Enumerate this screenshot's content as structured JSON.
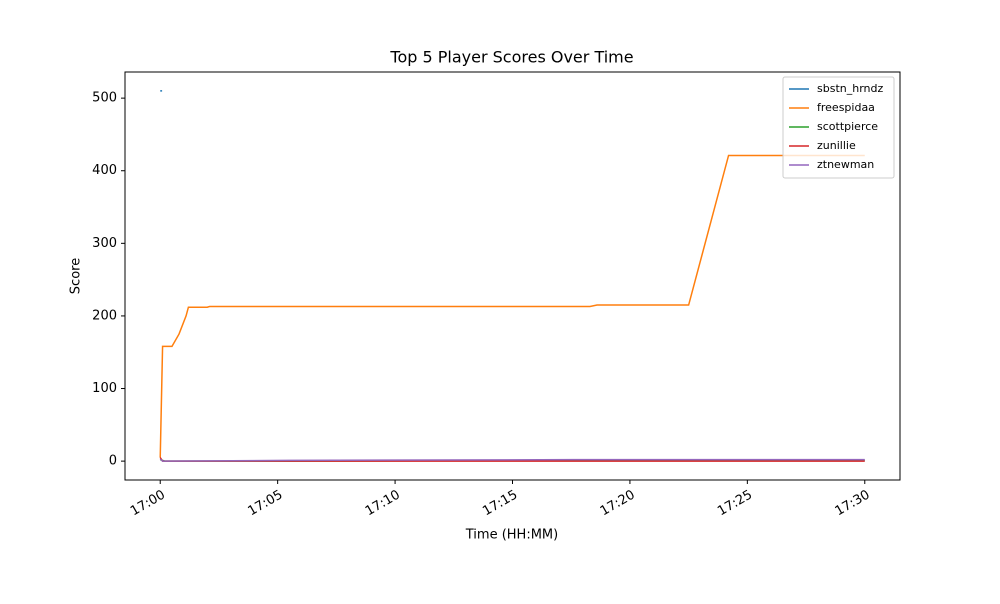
{
  "chart_data": {
    "type": "line",
    "title": "Top 5 Player Scores Over Time",
    "xlabel": "Time (HH:MM)",
    "ylabel": "Score",
    "xlim": [
      -1.5,
      31.5
    ],
    "ylim": [
      -26,
      536
    ],
    "xticks": [
      {
        "value": 0,
        "label": "17:00"
      },
      {
        "value": 5,
        "label": "17:05"
      },
      {
        "value": 10,
        "label": "17:10"
      },
      {
        "value": 15,
        "label": "17:15"
      },
      {
        "value": 20,
        "label": "17:20"
      },
      {
        "value": 25,
        "label": "17:25"
      },
      {
        "value": 30,
        "label": "17:30"
      }
    ],
    "yticks": [
      0,
      100,
      200,
      300,
      400,
      500
    ],
    "legend": "upper right",
    "series": [
      {
        "name": "sbstn_hrndz",
        "color": "#1f77b4",
        "x": [
          0,
          0.08
        ],
        "values": [
          510,
          510
        ]
      },
      {
        "name": "freespidaa",
        "color": "#ff7f0e",
        "x": [
          0,
          0.1,
          0.5,
          0.8,
          1.1,
          1.2,
          2.0,
          2.1,
          18.3,
          18.6,
          22.5,
          24.2,
          30
        ],
        "values": [
          5,
          158,
          158,
          175,
          200,
          212,
          212,
          213,
          213,
          215,
          215,
          421,
          421
        ]
      },
      {
        "name": "scottpierce",
        "color": "#2ca02c",
        "x": [
          0,
          0.2,
          5.5,
          17.5,
          30
        ],
        "values": [
          2,
          0,
          0,
          1,
          1
        ]
      },
      {
        "name": "zunillie",
        "color": "#d62728",
        "x": [
          0,
          0.1,
          30
        ],
        "values": [
          5,
          0,
          0
        ]
      },
      {
        "name": "ztnewman",
        "color": "#9467bd",
        "x": [
          0,
          0.1,
          5.5,
          17.6,
          30
        ],
        "values": [
          3,
          0,
          1,
          2,
          2
        ]
      }
    ]
  }
}
